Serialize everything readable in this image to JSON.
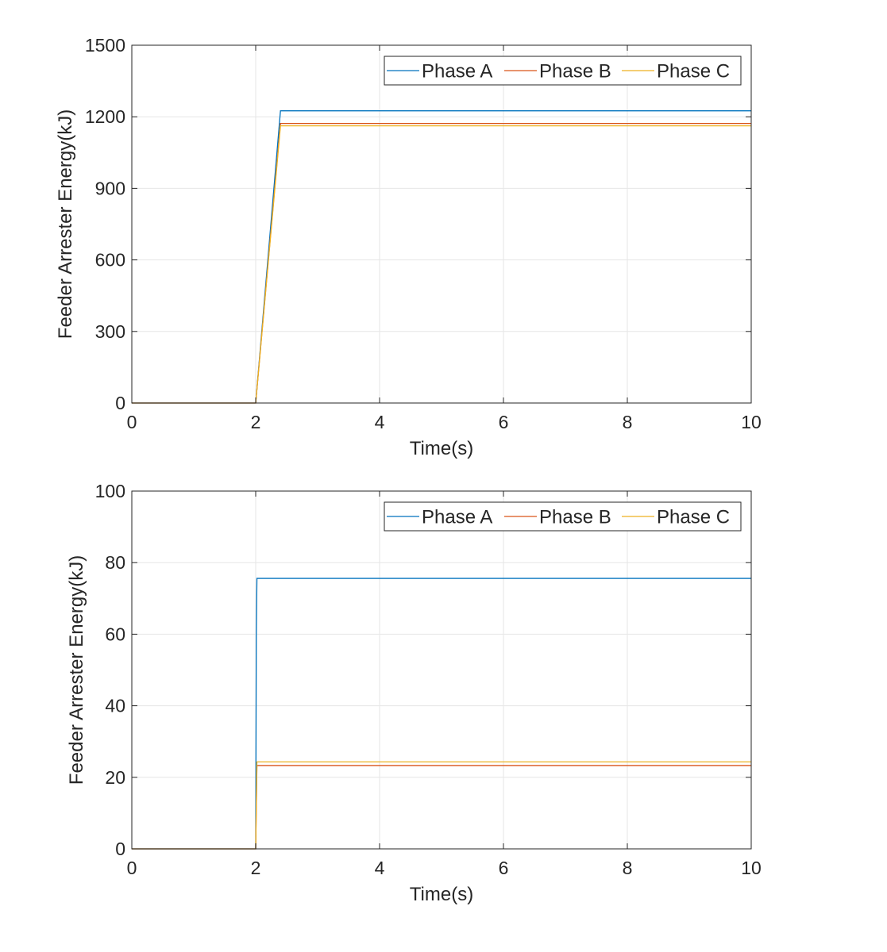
{
  "chart_data": [
    {
      "type": "line",
      "title": "",
      "xlabel": "Time(s)",
      "ylabel": "Feeder Arrester Energy(kJ)",
      "xlim": [
        0,
        10
      ],
      "ylim": [
        0,
        1500
      ],
      "xticks": [
        0,
        2,
        4,
        6,
        8,
        10
      ],
      "yticks": [
        0,
        300,
        600,
        900,
        1200,
        1500
      ],
      "grid": true,
      "legend_position": "top-right",
      "series": [
        {
          "name": "Phase A",
          "color": "#0072BD",
          "x": [
            0,
            2.0,
            2.4,
            10
          ],
          "y": [
            0,
            0,
            1225,
            1225
          ]
        },
        {
          "name": "Phase B",
          "color": "#D95319",
          "x": [
            0,
            2.0,
            2.4,
            10
          ],
          "y": [
            0,
            0,
            1172,
            1172
          ]
        },
        {
          "name": "Phase C",
          "color": "#EDB120",
          "x": [
            0,
            2.0,
            2.4,
            10
          ],
          "y": [
            0,
            0,
            1162,
            1162
          ]
        }
      ]
    },
    {
      "type": "line",
      "title": "",
      "xlabel": "Time(s)",
      "ylabel": "Feeder Arrester Energy(kJ)",
      "xlim": [
        0,
        10
      ],
      "ylim": [
        0,
        100
      ],
      "xticks": [
        0,
        2,
        4,
        6,
        8,
        10
      ],
      "yticks": [
        0,
        20,
        40,
        60,
        80,
        100
      ],
      "grid": true,
      "legend_position": "top-right",
      "series": [
        {
          "name": "Phase A",
          "color": "#0072BD",
          "x": [
            0,
            2.0,
            2.01,
            2.02,
            10
          ],
          "y": [
            0,
            0,
            60,
            75.6,
            75.6
          ]
        },
        {
          "name": "Phase B",
          "color": "#D95319",
          "x": [
            0,
            2.0,
            2.02,
            10
          ],
          "y": [
            0,
            0,
            23.3,
            23.3
          ]
        },
        {
          "name": "Phase C",
          "color": "#EDB120",
          "x": [
            0,
            2.0,
            2.02,
            10
          ],
          "y": [
            0,
            0,
            24.3,
            24.3
          ]
        }
      ]
    }
  ]
}
